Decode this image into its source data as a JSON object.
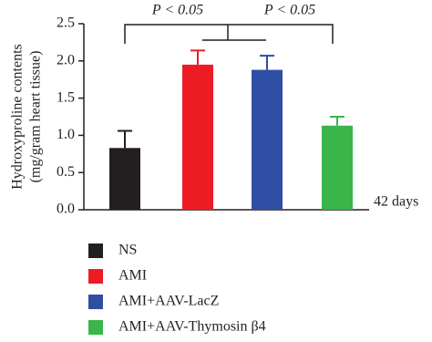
{
  "chart_data": {
    "type": "bar",
    "y_label": [
      "Hydroxyproline contents",
      "(mg/gram heart tissue)"
    ],
    "x_note": "42 days",
    "categories": [
      "NS",
      "AMI",
      "AMI+AAV-LacZ",
      "AMI+AAV-Thymosin β4"
    ],
    "values": [
      0.83,
      1.95,
      1.88,
      1.13
    ],
    "errors": [
      0.23,
      0.19,
      0.19,
      0.12
    ],
    "colors": [
      "#231f20",
      "#ed1c24",
      "#2e4fa3",
      "#39b54a"
    ],
    "ylim": [
      0,
      2.5
    ],
    "yticks": [
      {
        "value": 0,
        "label": "0.0"
      },
      0.5,
      {
        "value": 1,
        "label": "1.0"
      },
      1.5,
      {
        "value": 2,
        "label": "2.0"
      },
      2.5
    ],
    "annotations": [
      "P < 0.05",
      "P < 0.05"
    ]
  }
}
